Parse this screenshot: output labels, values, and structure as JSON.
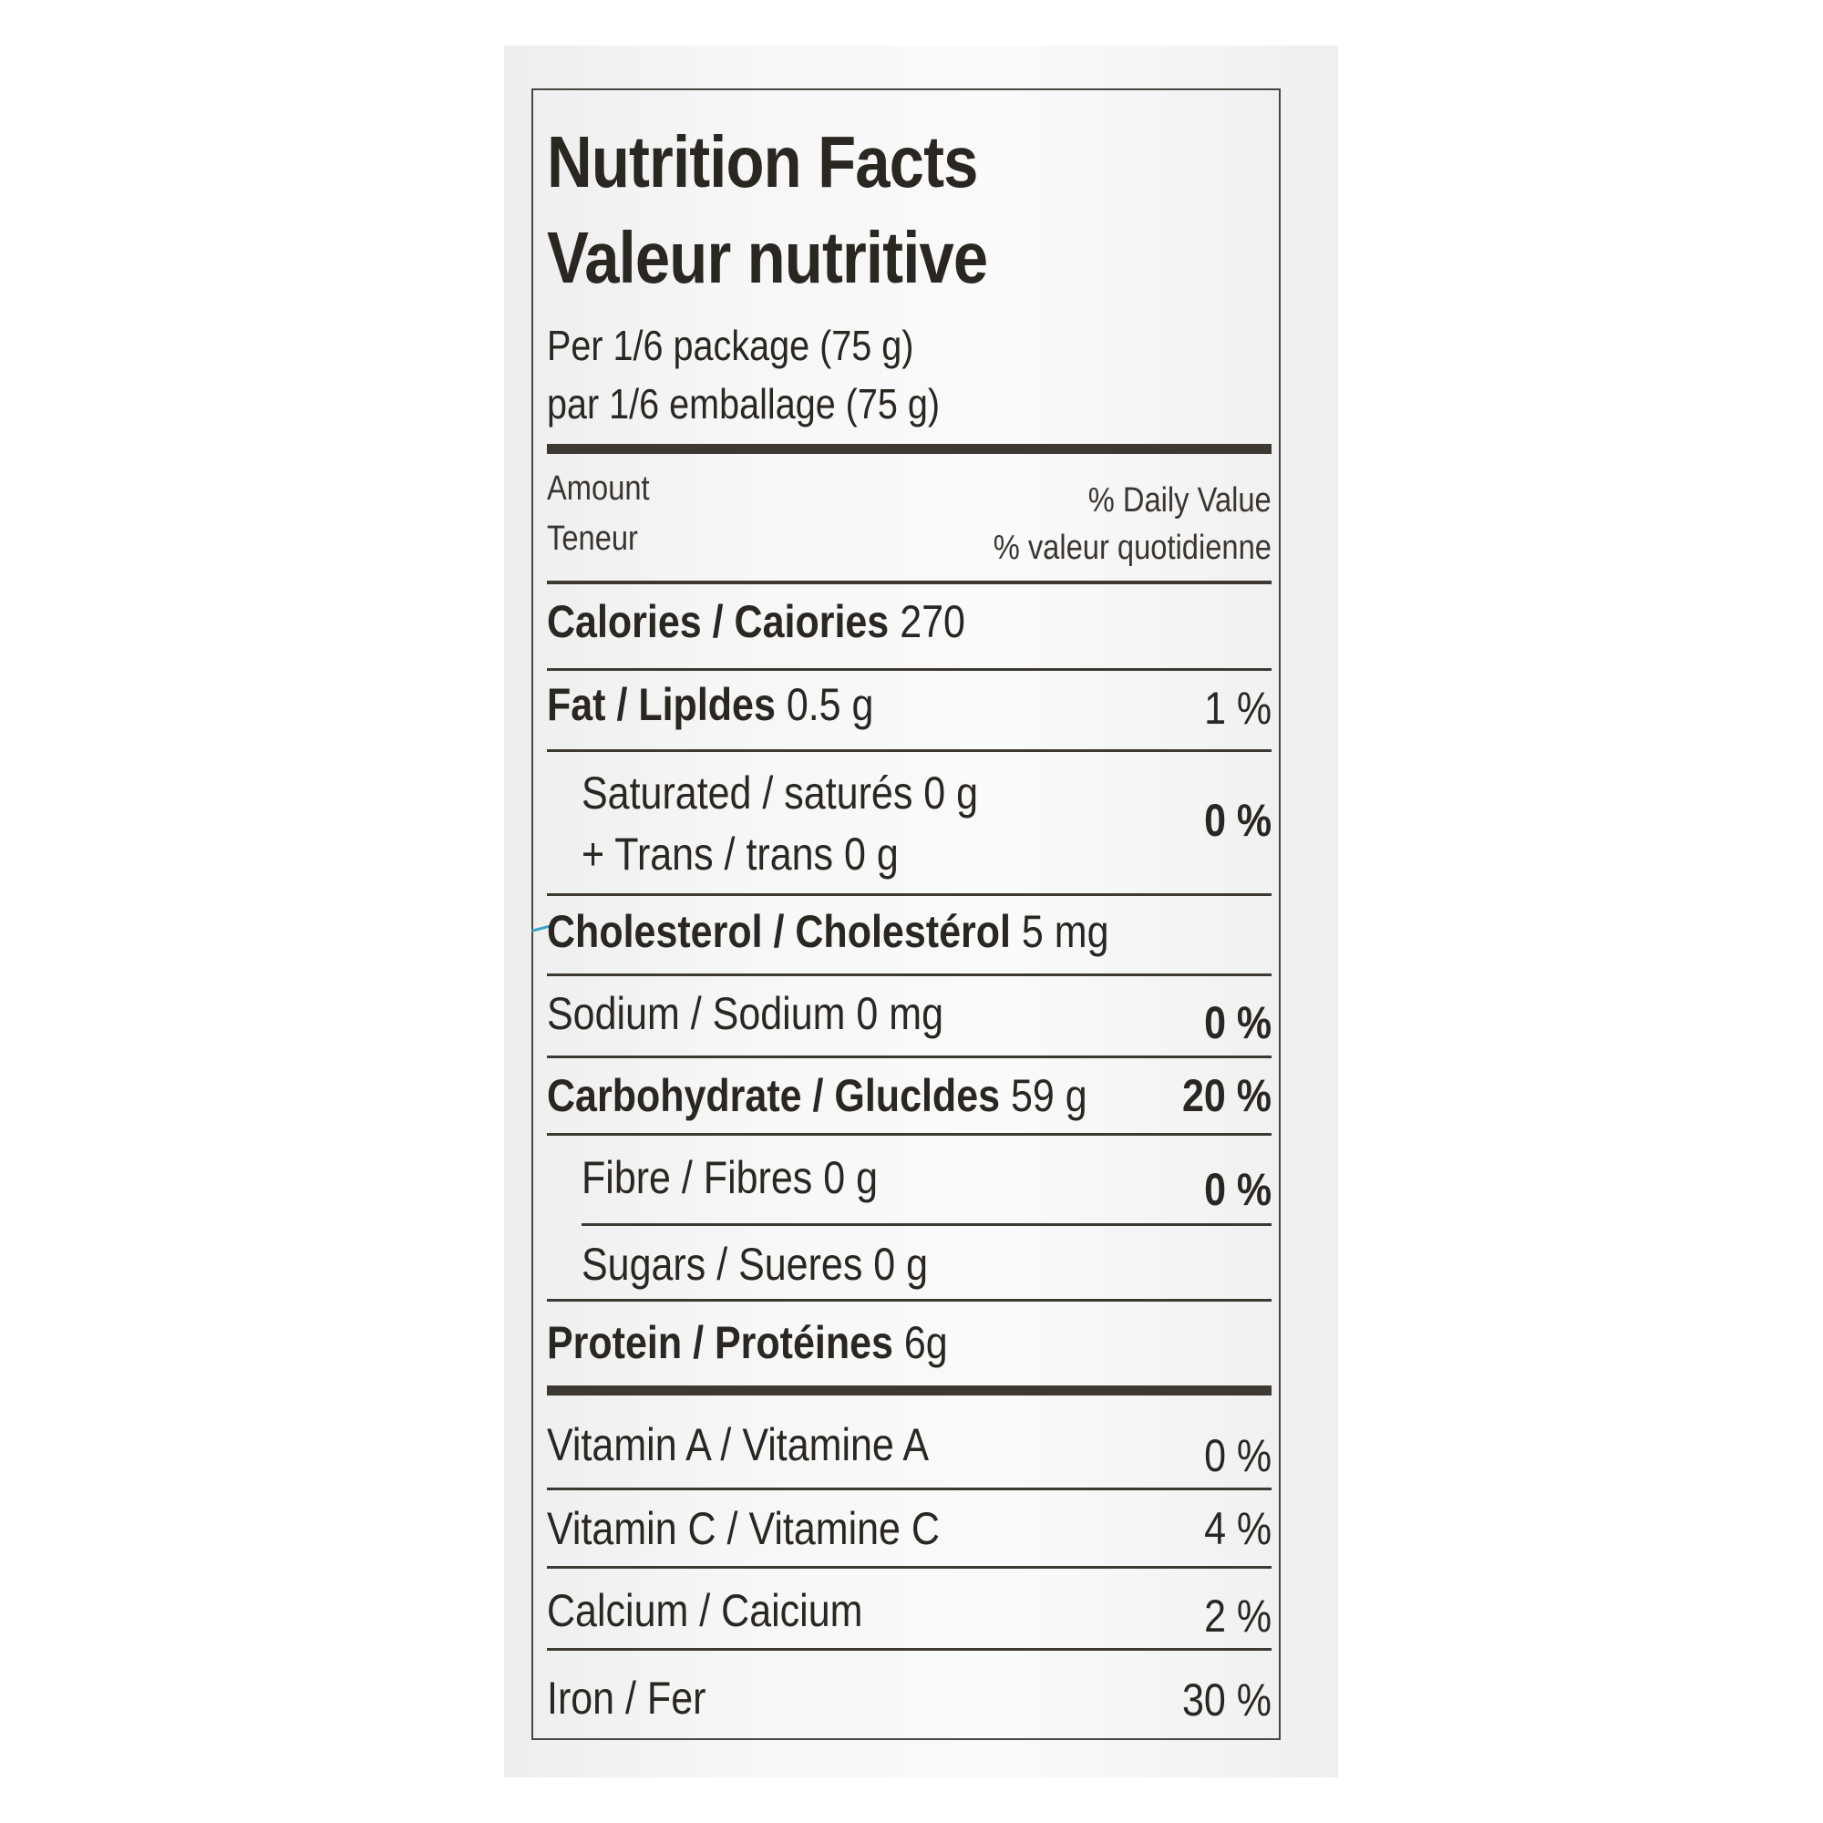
{
  "label": {
    "title_en": "Nutrition Facts",
    "title_fr": "Valeur nutritive",
    "serving_en": "Per 1/6 package  (75 g)",
    "serving_fr": "par 1/6 emballage (75 g)",
    "header": {
      "amount_en": "Amount",
      "amount_fr": "Teneur",
      "dv_en": "% Daily Value",
      "dv_fr": "% valeur quotidienne"
    },
    "calories": {
      "name": "Calories / Caiories",
      "value": "270"
    },
    "fat": {
      "name": "Fat / Lipldes",
      "value": "0.5 g",
      "dv": "1 %"
    },
    "saturated": {
      "name": "Saturated / saturés",
      "value": "0 g"
    },
    "trans": {
      "name": "+ Trans / trans",
      "value": "0 g"
    },
    "sat_trans_dv": "0 %",
    "cholesterol": {
      "name": "Cholesterol / Cholestérol",
      "value": "5 mg"
    },
    "sodium": {
      "name": "Sodium / Sodium",
      "value": "0 mg",
      "dv": "0 %"
    },
    "carbohydrate": {
      "name": "Carbohydrate / Glucldes",
      "value": "59 g",
      "dv": "20 %"
    },
    "fibre": {
      "name": "Fibre / Fibres",
      "value": "0 g",
      "dv": "0 %"
    },
    "sugars": {
      "name": "Sugars / Sueres",
      "value": "0 g"
    },
    "protein": {
      "name": "Protein / Protéines",
      "value": "6g"
    },
    "vitamin_a": {
      "name": "Vitamin A / Vitamine A",
      "dv": "0 %"
    },
    "vitamin_c": {
      "name": "Vitamin C / Vitamine C",
      "dv": "4 %"
    },
    "calcium": {
      "name": "Calcium / Caicium",
      "dv": "2 %"
    },
    "iron": {
      "name": "Iron / Fer",
      "dv": "30 %"
    }
  }
}
